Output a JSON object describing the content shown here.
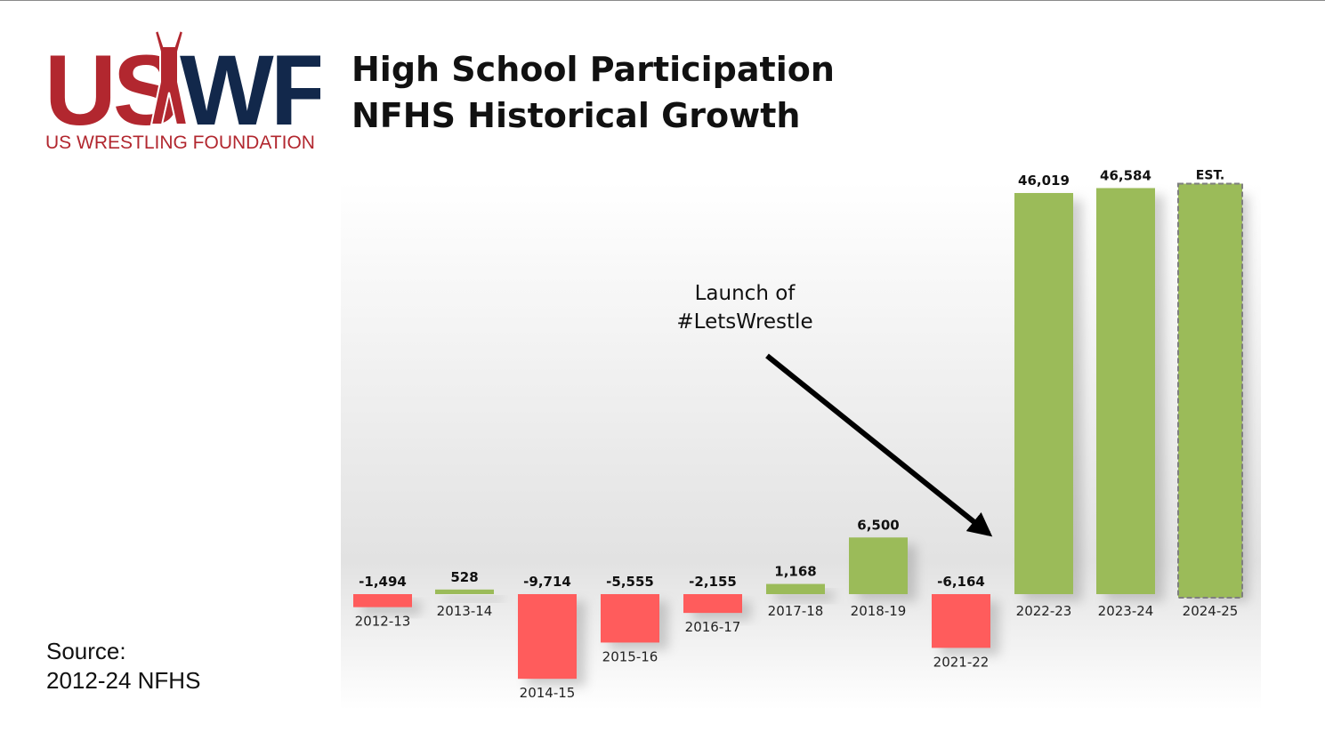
{
  "logo": {
    "mark": "USWF",
    "tagline": "US WRESTLING FOUNDATION",
    "colors": {
      "red": "#b2272f",
      "navy": "#12284b"
    }
  },
  "title": {
    "line1": "High School Participation",
    "line2": "NFHS Historical Growth"
  },
  "source": {
    "label": "Source:",
    "text": "2012-24 NFHS"
  },
  "chart_data": {
    "type": "bar",
    "categories": [
      "2012-13",
      "2013-14",
      "2014-15",
      "2015-16",
      "2016-17",
      "2017-18",
      "2018-19",
      "2021-22",
      "2022-23",
      "2023-24",
      "2024-25"
    ],
    "values": [
      -1494,
      528,
      -9714,
      -5555,
      -2155,
      1168,
      6500,
      -6164,
      46019,
      46584,
      null
    ],
    "value_labels": [
      "-1,494",
      "528",
      "-9,714",
      "-5,555",
      "-2,155",
      "1,168",
      "6,500",
      "-6,164",
      "46,019",
      "46,584",
      "EST."
    ],
    "estimated": [
      false,
      false,
      false,
      false,
      false,
      false,
      false,
      false,
      false,
      false,
      true
    ],
    "estimate_note": "EST.",
    "annotation": {
      "text_line1": "Launch of",
      "text_line2": "#LetsWrestle",
      "points_to": "2022-23"
    },
    "colors": {
      "positive": "#9bbb59",
      "negative": "#ff5c5c",
      "estimate_border": "#7f7f7f"
    },
    "grid": false,
    "legend": "none"
  }
}
